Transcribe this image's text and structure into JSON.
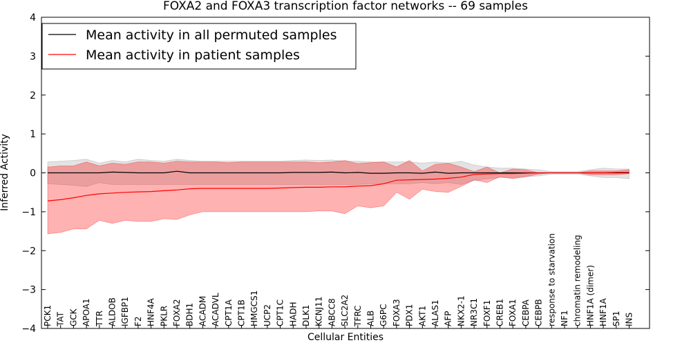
{
  "chart_data": {
    "type": "line",
    "title": "FOXA2 and FOXA3 transcription factor networks -- 69 samples",
    "xlabel": "Cellular Entities",
    "ylabel": "Inferred Activity",
    "ylim": [
      -4,
      4
    ],
    "yticks": [
      "−4",
      "−3",
      "−2",
      "−1",
      "0",
      "1",
      "2",
      "3",
      "4"
    ],
    "grid": false,
    "legend_position": "top-left",
    "categories": [
      "PCK1",
      "TAT",
      "GCK",
      "APOA1",
      "TTR",
      "ALDOB",
      "IGFBP1",
      "F2",
      "HNF4A",
      "PKLR",
      "FOXA2",
      "BDH1",
      "ACADM",
      "ACADVL",
      "CPT1A",
      "CPT1B",
      "HMGCS1",
      "UCP2",
      "CPT1C",
      "HADH",
      "DLK1",
      "KCNJ11",
      "ABCC8",
      "SLC2A2",
      "TFRC",
      "ALB",
      "G6PC",
      "FOXA3",
      "PDX1",
      "AKT1",
      "ALAS1",
      "AFP",
      "NKX2-1",
      "NR3C1",
      "FOXF1",
      "CREB1",
      "FOXA1",
      "CEBPA",
      "CEBPB",
      "response to starvation",
      "NF1",
      "chromatin remodeling",
      "HNF1A (dimer)",
      "HNF1A",
      "SP1",
      "INS"
    ],
    "series": [
      {
        "name": "Mean activity in all permuted samples",
        "color": "#000000",
        "band_color": "#808080",
        "values": [
          0.0,
          0.0,
          0.0,
          0.0,
          0.0,
          0.02,
          0.01,
          0.0,
          0.0,
          0.0,
          0.04,
          0.0,
          0.0,
          0.0,
          0.0,
          0.0,
          0.0,
          0.0,
          0.0,
          0.01,
          0.01,
          0.01,
          0.02,
          0.0,
          0.01,
          -0.01,
          -0.01,
          0.0,
          0.0,
          -0.01,
          0.02,
          -0.01,
          0.0,
          0.0,
          0.0,
          0.0,
          0.0,
          0.0,
          0.0,
          0.0,
          0.0,
          0.0,
          0.0,
          0.0,
          0.0,
          0.0
        ],
        "upper": [
          0.28,
          0.3,
          0.32,
          0.35,
          0.25,
          0.32,
          0.28,
          0.35,
          0.32,
          0.3,
          0.35,
          0.32,
          0.3,
          0.3,
          0.3,
          0.3,
          0.3,
          0.3,
          0.3,
          0.32,
          0.33,
          0.32,
          0.33,
          0.3,
          0.3,
          0.28,
          0.28,
          0.28,
          0.28,
          0.25,
          0.28,
          0.25,
          0.3,
          0.2,
          0.15,
          0.12,
          0.12,
          0.1,
          0.08,
          0.03,
          0.03,
          0.03,
          0.08,
          0.12,
          0.1,
          0.1
        ],
        "lower": [
          -0.28,
          -0.3,
          -0.32,
          -0.35,
          -0.25,
          -0.3,
          -0.3,
          -0.3,
          -0.3,
          -0.3,
          -0.3,
          -0.3,
          -0.3,
          -0.3,
          -0.3,
          -0.3,
          -0.3,
          -0.3,
          -0.3,
          -0.3,
          -0.3,
          -0.3,
          -0.3,
          -0.3,
          -0.3,
          -0.28,
          -0.28,
          -0.28,
          -0.28,
          -0.25,
          -0.28,
          -0.25,
          -0.3,
          -0.2,
          -0.15,
          -0.12,
          -0.12,
          -0.1,
          -0.08,
          -0.03,
          -0.03,
          -0.03,
          -0.08,
          -0.12,
          -0.12,
          -0.15
        ]
      },
      {
        "name": "Mean activity in patient samples",
        "color": "#ff0000",
        "band_color": "#ff0000",
        "values": [
          -0.72,
          -0.69,
          -0.64,
          -0.58,
          -0.54,
          -0.52,
          -0.5,
          -0.49,
          -0.48,
          -0.46,
          -0.44,
          -0.41,
          -0.4,
          -0.4,
          -0.4,
          -0.4,
          -0.4,
          -0.4,
          -0.39,
          -0.38,
          -0.37,
          -0.37,
          -0.36,
          -0.36,
          -0.34,
          -0.33,
          -0.28,
          -0.19,
          -0.18,
          -0.17,
          -0.16,
          -0.14,
          -0.11,
          -0.04,
          -0.03,
          -0.02,
          -0.02,
          -0.01,
          0.0,
          0.0,
          0.0,
          0.0,
          0.0,
          0.0,
          0.01,
          0.01
        ],
        "upper": [
          0.15,
          0.18,
          0.18,
          0.28,
          0.18,
          0.25,
          0.22,
          0.28,
          0.28,
          0.25,
          0.3,
          0.28,
          0.28,
          0.28,
          0.26,
          0.28,
          0.28,
          0.28,
          0.28,
          0.28,
          0.28,
          0.26,
          0.28,
          0.32,
          0.24,
          0.26,
          0.28,
          0.15,
          0.32,
          0.05,
          0.22,
          0.25,
          0.15,
          0.03,
          0.15,
          0.0,
          0.1,
          0.08,
          0.0,
          0.0,
          0.0,
          0.0,
          0.05,
          0.05,
          0.05,
          0.08
        ],
        "lower": [
          -1.57,
          -1.53,
          -1.44,
          -1.44,
          -1.22,
          -1.3,
          -1.22,
          -1.25,
          -1.25,
          -1.18,
          -1.2,
          -1.08,
          -1.0,
          -1.0,
          -1.0,
          -1.0,
          -1.0,
          -1.0,
          -1.0,
          -1.0,
          -1.0,
          -0.98,
          -0.98,
          -1.05,
          -0.85,
          -0.9,
          -0.85,
          -0.5,
          -0.68,
          -0.42,
          -0.48,
          -0.5,
          -0.35,
          -0.18,
          -0.25,
          -0.1,
          -0.15,
          -0.1,
          -0.03,
          0.0,
          0.0,
          0.0,
          -0.05,
          -0.05,
          -0.05,
          -0.02
        ]
      }
    ]
  }
}
